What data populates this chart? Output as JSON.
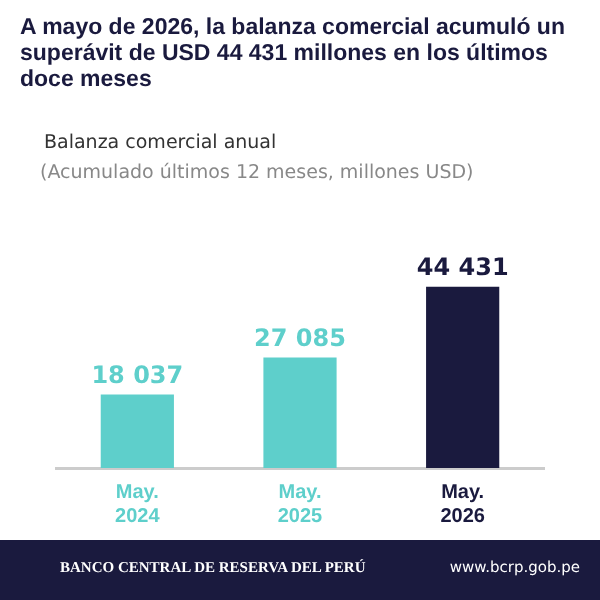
{
  "chart_data": {
    "type": "bar",
    "title": "A mayo de 2026, la balanza comercial acumuló un superávit de USD 44 431 millones en los últimos doce meses",
    "subtitle": "Balanza comercial anual",
    "categories": [
      "May. 2024",
      "May. 2025",
      "May. 2026"
    ],
    "values": [
      18037,
      27085,
      44431
    ],
    "colors": [
      "#5ecfcb",
      "#5ecfcb",
      "#1a1a3e"
    ],
    "value_labels": [
      "18 037",
      "27 085",
      "44 431"
    ],
    "annotations": [
      "(Acumulado últimos 12 meses, millones USD)",
      "BANCO CENTRAL DE RESERVA DEL PERÚ",
      "www.bcrp.gob.pe"
    ],
    "legend": false,
    "grid": false
  }
}
